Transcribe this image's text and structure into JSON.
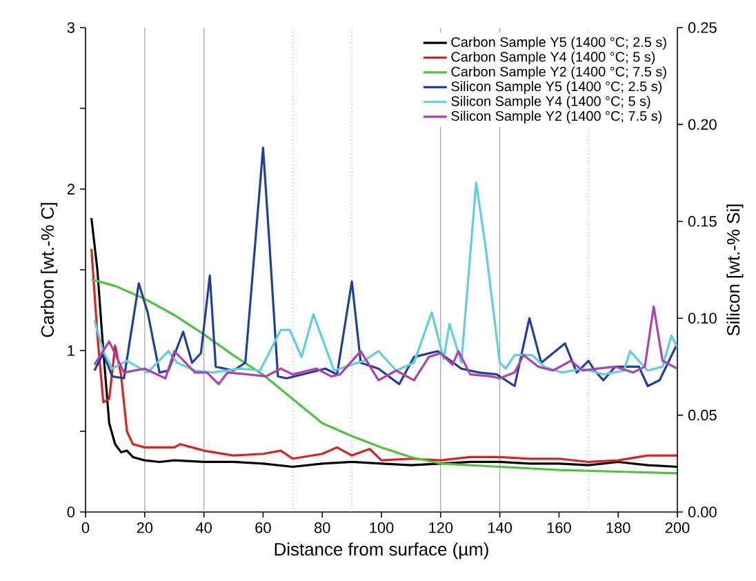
{
  "chart_data": {
    "type": "line",
    "xlabel": "Distance from surface (µm)",
    "ylabel": "Carbon [wt.-% C]",
    "y2label": "Silicon [wt.-% Si]",
    "xlim": [
      0,
      200
    ],
    "xticks": [
      0,
      20,
      40,
      60,
      80,
      100,
      120,
      140,
      160,
      180,
      200
    ],
    "ylim": [
      0,
      3
    ],
    "yticks": [
      0,
      {
        "value": 0.5,
        "label": null
      },
      1,
      {
        "value": 1.5,
        "label": null
      },
      2,
      {
        "value": 2.5,
        "label": null
      },
      3
    ],
    "y2lim": [
      0,
      0.25
    ],
    "y2ticks": [
      {
        "value": 0,
        "label": "0.00"
      },
      {
        "value": 0.05,
        "label": "0.05"
      },
      {
        "value": 0.1,
        "label": "0.10"
      },
      {
        "value": 0.15,
        "label": "0.15"
      },
      {
        "value": 0.2,
        "label": "0.20"
      },
      {
        "value": 0.25,
        "label": "0.25"
      }
    ],
    "legend": "top right",
    "marker": "none",
    "line_style": "solid",
    "ref_lines": [
      {
        "axis": "x",
        "value": 20,
        "color": "#a0a0a0",
        "line_style": "solid"
      },
      {
        "axis": "x",
        "value": 40,
        "color": "#a0a0a0",
        "line_style": "solid"
      },
      {
        "axis": "x",
        "value": 70,
        "color": "#a0a0a0",
        "line_style": "dotted"
      },
      {
        "axis": "x",
        "value": 90,
        "color": "#a0a0a0",
        "line_style": "dotted"
      },
      {
        "axis": "x",
        "value": 120,
        "color": "#a0a0a0",
        "line_style": "solid"
      },
      {
        "axis": "x",
        "value": 140,
        "color": "#a0a0a0",
        "line_style": "solid"
      },
      {
        "axis": "x",
        "value": 170,
        "color": "#a0a0a0",
        "line_style": "dotted"
      }
    ],
    "series": [
      {
        "name": "Carbon Sample Y5 (1400 °C; 2.5 s)",
        "color": "#000000",
        "x": [
          2,
          4,
          6,
          8,
          10,
          12,
          14,
          16,
          20,
          25,
          30,
          40,
          50,
          60,
          70,
          80,
          90,
          100,
          110,
          120,
          130,
          140,
          150,
          160,
          170,
          180,
          190,
          200
        ],
        "values": [
          1.82,
          1.5,
          1.0,
          0.55,
          0.42,
          0.37,
          0.38,
          0.34,
          0.32,
          0.31,
          0.32,
          0.31,
          0.31,
          0.3,
          0.28,
          0.3,
          0.31,
          0.3,
          0.29,
          0.3,
          0.31,
          0.31,
          0.3,
          0.3,
          0.29,
          0.31,
          0.29,
          0.28
        ]
      },
      {
        "name": "Carbon Sample Y4 (1400 °C; 5 s)",
        "color": "#e0201c",
        "x": [
          2,
          4,
          6,
          8,
          10,
          12,
          14,
          16,
          20,
          30,
          32,
          36,
          40,
          50,
          60,
          66,
          70,
          80,
          85,
          90,
          96,
          100,
          110,
          120,
          130,
          140,
          150,
          160,
          170,
          180,
          190,
          200
        ],
        "values": [
          1.63,
          1.1,
          0.68,
          0.7,
          1.03,
          0.85,
          0.5,
          0.42,
          0.4,
          0.4,
          0.42,
          0.4,
          0.38,
          0.35,
          0.36,
          0.38,
          0.33,
          0.36,
          0.4,
          0.35,
          0.39,
          0.32,
          0.33,
          0.32,
          0.34,
          0.34,
          0.33,
          0.33,
          0.31,
          0.32,
          0.35,
          0.35
        ]
      },
      {
        "name": "Carbon Sample Y2 (1400 °C; 7.5 s)",
        "color": "#4cc43c",
        "x": [
          2,
          10,
          20,
          30,
          40,
          50,
          60,
          70,
          80,
          90,
          100,
          110,
          120,
          140,
          160,
          180,
          200
        ],
        "values": [
          1.44,
          1.4,
          1.32,
          1.22,
          1.1,
          0.97,
          0.85,
          0.7,
          0.55,
          0.47,
          0.4,
          0.34,
          0.3,
          0.28,
          0.26,
          0.25,
          0.24
        ]
      },
      {
        "name": "Silicon Sample Y5 (1400 °C; 2.5 s)",
        "color": "#1f3fa0",
        "axis": "y2",
        "x": [
          3,
          6,
          9,
          13,
          18,
          21,
          25,
          28,
          33,
          36,
          39,
          42,
          44,
          50,
          54,
          60,
          62,
          65,
          68,
          76,
          81,
          85,
          90,
          93,
          99,
          106,
          111,
          119,
          127,
          133,
          139,
          145,
          150,
          154,
          162,
          166,
          170,
          172,
          175,
          179,
          187,
          190,
          194,
          200
        ],
        "values": [
          0.073,
          0.082,
          0.07,
          0.069,
          0.118,
          0.103,
          0.072,
          0.073,
          0.093,
          0.077,
          0.082,
          0.122,
          0.075,
          0.073,
          0.077,
          0.188,
          0.142,
          0.07,
          0.069,
          0.072,
          0.074,
          0.071,
          0.119,
          0.077,
          0.074,
          0.066,
          0.08,
          0.083,
          0.074,
          0.072,
          0.071,
          0.065,
          0.1,
          0.077,
          0.087,
          0.072,
          0.078,
          0.073,
          0.068,
          0.075,
          0.075,
          0.065,
          0.068,
          0.087
        ]
      },
      {
        "name": "Silicon Sample Y4 (1400 °C; 5 s)",
        "color": "#5ccfe0",
        "axis": "y2",
        "x": [
          3,
          6,
          9,
          14,
          21,
          28,
          31,
          37,
          43,
          52,
          59,
          66,
          69,
          73,
          77,
          84,
          90,
          94,
          99,
          105,
          111,
          117,
          121,
          123,
          127,
          132,
          135,
          140,
          142,
          145,
          151,
          155,
          161,
          168,
          175,
          182,
          184,
          190,
          195,
          198,
          200
        ],
        "values": [
          0.099,
          0.083,
          0.074,
          0.078,
          0.072,
          0.083,
          0.077,
          0.073,
          0.072,
          0.074,
          0.073,
          0.094,
          0.094,
          0.08,
          0.102,
          0.073,
          0.076,
          0.078,
          0.083,
          0.073,
          0.077,
          0.103,
          0.079,
          0.097,
          0.077,
          0.17,
          0.139,
          0.077,
          0.074,
          0.081,
          0.081,
          0.075,
          0.072,
          0.074,
          0.071,
          0.073,
          0.083,
          0.073,
          0.075,
          0.091,
          0.085
        ]
      },
      {
        "name": "Silicon Sample Y2 (1400 °C; 7.5 s)",
        "color": "#b040b0",
        "axis": "y2",
        "x": [
          3,
          8,
          13,
          20,
          27,
          30,
          37,
          41,
          45,
          48,
          55,
          61,
          66,
          70,
          78,
          83,
          86,
          93,
          99,
          105,
          111,
          116,
          120,
          124,
          126,
          130,
          137,
          140,
          145,
          148,
          153,
          158,
          164,
          168,
          173,
          179,
          185,
          189,
          192,
          195,
          200
        ],
        "values": [
          0.076,
          0.088,
          0.072,
          0.074,
          0.069,
          0.083,
          0.072,
          0.072,
          0.066,
          0.072,
          0.071,
          0.07,
          0.074,
          0.071,
          0.074,
          0.07,
          0.071,
          0.083,
          0.068,
          0.073,
          0.068,
          0.08,
          0.082,
          0.076,
          0.083,
          0.071,
          0.07,
          0.069,
          0.072,
          0.081,
          0.075,
          0.073,
          0.078,
          0.073,
          0.074,
          0.075,
          0.072,
          0.075,
          0.106,
          0.078,
          0.074
        ]
      }
    ]
  }
}
